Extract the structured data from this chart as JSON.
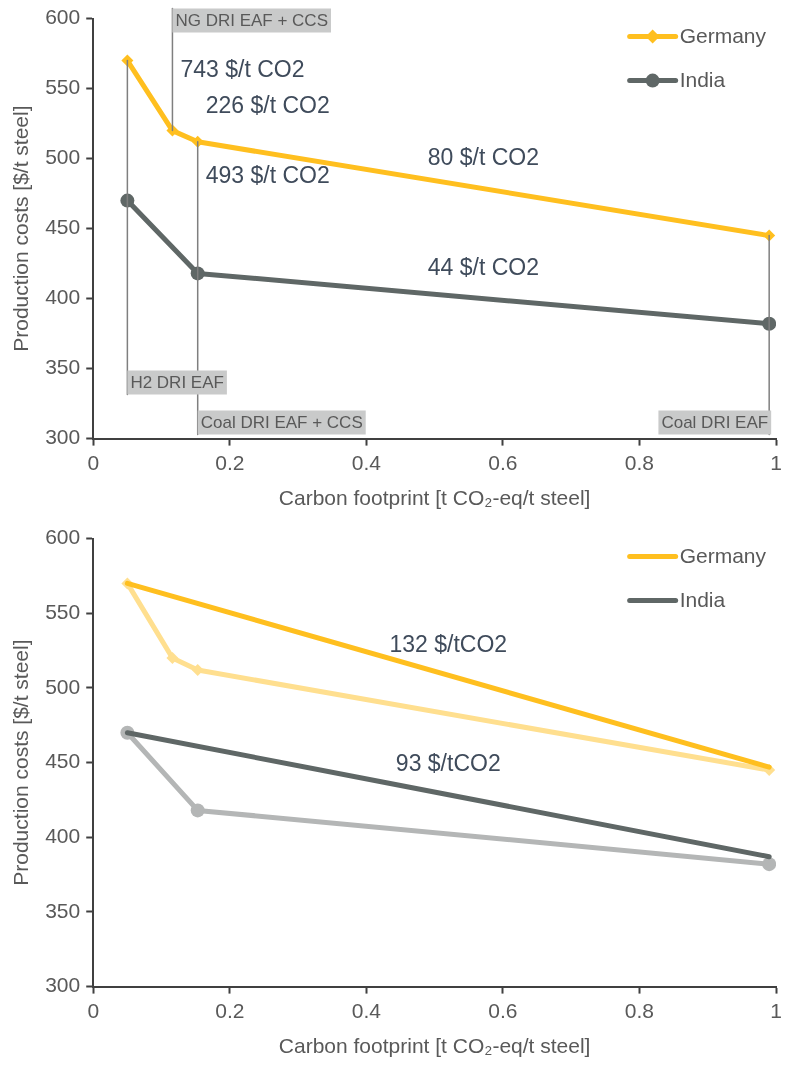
{
  "chart_data": [
    {
      "type": "line",
      "xlabel": "Carbon footprint [t CO₂-eq/t steel]",
      "ylabel": "Production costs [$/t steel]",
      "xlim": [
        0,
        1
      ],
      "xticks": [
        0,
        0.2,
        0.4,
        0.6,
        0.8,
        1
      ],
      "ylim": [
        300,
        600
      ],
      "yticks": [
        300,
        350,
        400,
        450,
        500,
        550,
        600
      ],
      "grid": false,
      "legend": "top right",
      "series": [
        {
          "name": "Germany",
          "color": "#ffbf1f",
          "marker": "diamond",
          "x": [
            0.05,
            0.116,
            0.153,
            0.99
          ],
          "values": [
            570,
            520,
            512,
            445
          ]
        },
        {
          "name": "India",
          "color": "#5f6766",
          "marker": "circle",
          "x": [
            0.05,
            0.153,
            0.99
          ],
          "values": [
            470,
            418,
            382
          ]
        }
      ],
      "ref_lines": [
        {
          "axis": "x",
          "value": 0.05,
          "label": "H2 DRI EAF",
          "color": "#7f7f7f"
        },
        {
          "axis": "x",
          "value": 0.116,
          "label": "NG DRI EAF + CCS",
          "color": "#7f7f7f"
        },
        {
          "axis": "x",
          "value": 0.153,
          "label": "Coal DRI EAF + CCS",
          "color": "#7f7f7f"
        },
        {
          "axis": "x",
          "value": 0.99,
          "label": "Coal DRI EAF",
          "color": "#7f7f7f"
        }
      ],
      "annotations": [
        "743 $/t CO2",
        "226 $/t CO2",
        "80 $/t CO2",
        "493 $/t CO2",
        "44 $/t CO2"
      ]
    },
    {
      "type": "line",
      "xlabel": "Carbon footprint [t CO₂-eq/t steel]",
      "ylabel": "Production costs [$/t steel]",
      "xlim": [
        0,
        1
      ],
      "xticks": [
        0,
        0.2,
        0.4,
        0.6,
        0.8,
        1
      ],
      "ylim": [
        300,
        600
      ],
      "yticks": [
        300,
        350,
        400,
        450,
        500,
        550,
        600
      ],
      "grid": false,
      "legend": "top right",
      "series": [
        {
          "color": "#ffdf8f",
          "marker": "diamond",
          "x": [
            0.05,
            0.116,
            0.153,
            0.99
          ],
          "values": [
            570,
            520,
            512,
            445
          ]
        },
        {
          "color": "#b4b6b6",
          "marker": "circle",
          "x": [
            0.05,
            0.153,
            0.99
          ],
          "values": [
            470,
            418,
            382
          ]
        },
        {
          "name": "Germany",
          "color": "#ffbf1f",
          "marker": "none",
          "x": [
            0.05,
            0.99
          ],
          "values": [
            570,
            447
          ]
        },
        {
          "name": "India",
          "color": "#5f6766",
          "marker": "none",
          "x": [
            0.05,
            0.99
          ],
          "values": [
            470,
            387
          ]
        }
      ],
      "annotations": [
        "132 $/tCO2",
        "93 $/tCO2"
      ]
    }
  ]
}
